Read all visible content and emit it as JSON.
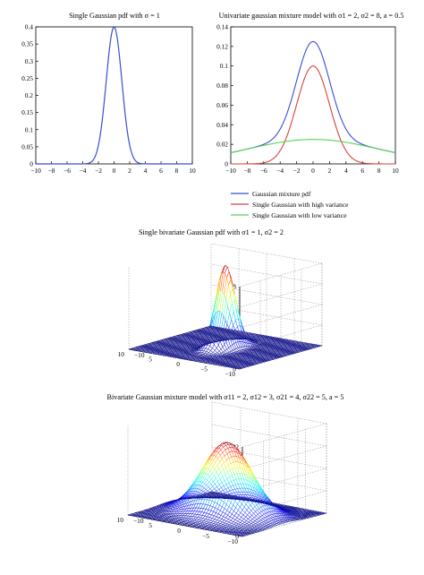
{
  "chart_data": [
    {
      "type": "line",
      "title": "Single Gaussian pdf with σ = 1",
      "x_ticks": [
        "−10",
        "−8",
        "−6",
        "−4",
        "−2",
        "0",
        "2",
        "4",
        "6",
        "8",
        "10"
      ],
      "y_ticks": [
        "0",
        "0.05",
        "0.1",
        "0.15",
        "0.2",
        "0.25",
        "0.3",
        "0.35",
        "0.4"
      ],
      "xlim": [
        -10,
        10
      ],
      "ylim": [
        0,
        0.4
      ],
      "series": [
        {
          "color": "#3a4fd0",
          "mean": 0,
          "sigma": 1,
          "peak": 0.399
        }
      ]
    },
    {
      "type": "line",
      "title": "Univariate gaussian mixture model with σ1 = 2, σ2 = 8, a = 0.5",
      "x_ticks": [
        "−10",
        "−8",
        "−6",
        "−4",
        "−2",
        "0",
        "2",
        "4",
        "6",
        "8",
        "10"
      ],
      "y_ticks": [
        "0",
        "0.02",
        "0.04",
        "0.06",
        "0.08",
        "0.1",
        "0.12",
        "0.14"
      ],
      "xlim": [
        -10,
        10
      ],
      "ylim": [
        0,
        0.14
      ],
      "series": [
        {
          "name": "Gaussian mixture pdf",
          "color": "#3a4fd0",
          "peak": 0.125
        },
        {
          "name": "Single Gaussian with high variance",
          "color": "#d8423a",
          "peak": 0.1
        },
        {
          "name": "Single Gaussian with low variance",
          "color": "#55d455",
          "peak": 0.025
        }
      ]
    },
    {
      "type": "surface",
      "title": "Single bivariate Gaussian pdf with σ1 = 1, σ2 = 2",
      "z_ticks": [
        "0",
        "0.02",
        "0.04",
        "0.06",
        "0.08"
      ],
      "x_ticks": [
        "10",
        "5",
        "0",
        "−5",
        "−10"
      ],
      "y_ticks": [
        "−10",
        "−5",
        "0",
        "5",
        "10"
      ],
      "zlim": [
        0,
        0.08
      ],
      "peak": 0.08
    },
    {
      "type": "surface",
      "title": "Bivariate Gaussian mixture model with σ11 = 2, σ12 = 3, σ21 = 4, σ22 = 5, a = 5",
      "z_ticks": [
        "0",
        "0.005",
        "0.01",
        "0.015",
        "0.02"
      ],
      "x_ticks": [
        "10",
        "5",
        "0",
        "−5",
        "−10"
      ],
      "y_ticks": [
        "−10",
        "−5",
        "0",
        "5",
        "10"
      ],
      "zlim": [
        0,
        0.02
      ],
      "peak": 0.016
    }
  ]
}
